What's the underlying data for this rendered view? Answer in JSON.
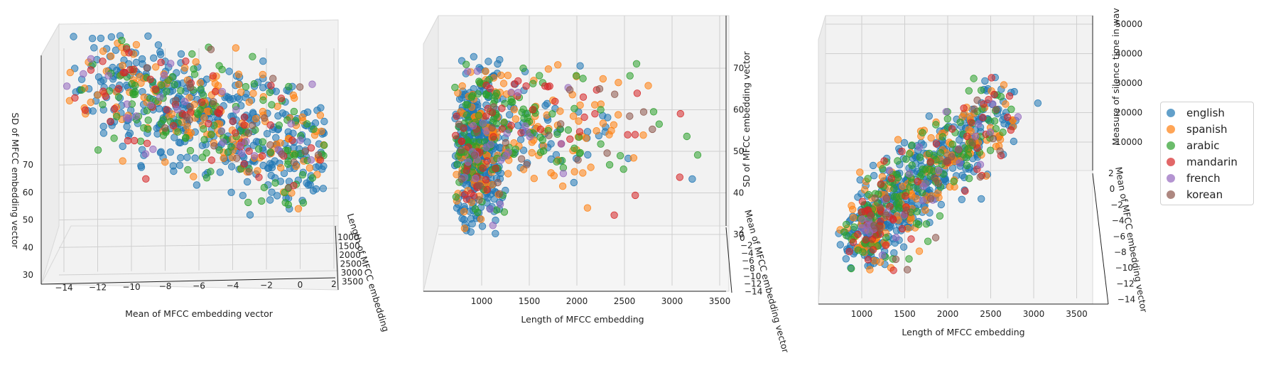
{
  "chart_data": [
    {
      "type": "scatter",
      "projection": "3d",
      "xlabel": "Mean of MFCC embedding vector",
      "ylabel": "Length of MFCC embedding",
      "zlabel": "SD of MFCC embedding vector",
      "x_ticks": [
        "−14",
        "−12",
        "−10",
        "−8",
        "−6",
        "−4",
        "−2",
        "0",
        "2"
      ],
      "y_ticks": [
        "1000",
        "1500",
        "2000",
        "2500",
        "3000",
        "3500"
      ],
      "z_ticks": [
        "30",
        "40",
        "50",
        "60",
        "70"
      ],
      "xlim": [
        -15,
        3
      ],
      "ylim": [
        500,
        3800
      ],
      "zlim": [
        27,
        78
      ],
      "grid": true
    },
    {
      "type": "scatter",
      "projection": "3d",
      "xlabel": "Length of MFCC embedding",
      "ylabel": "Mean of MFCC embedding vector",
      "zlabel": "SD of MFCC embedding vector",
      "x_ticks": [
        "1000",
        "1500",
        "2000",
        "2500",
        "3000",
        "3500"
      ],
      "y_ticks": [
        "2",
        "0",
        "−2",
        "−4",
        "−6",
        "−8",
        "−10",
        "−12",
        "−14"
      ],
      "z_ticks": [
        "30",
        "40",
        "50",
        "60",
        "70"
      ],
      "xlim": [
        500,
        3800
      ],
      "ylim": [
        -15,
        3
      ],
      "zlim": [
        27,
        78
      ],
      "grid": true
    },
    {
      "type": "scatter",
      "projection": "3d",
      "xlabel": "Length of MFCC embedding",
      "ylabel": "Mean of MFCC embedding vector",
      "zlabel": "Measure of silence time in wav",
      "x_ticks": [
        "1000",
        "1500",
        "2000",
        "2500",
        "3000",
        "3500"
      ],
      "y_ticks": [
        "2",
        "0",
        "−2",
        "−4",
        "−6",
        "−8",
        "−10",
        "−12",
        "−14"
      ],
      "z_ticks": [
        "10000",
        "20000",
        "30000",
        "40000",
        "50000"
      ],
      "xlim": [
        500,
        3800
      ],
      "ylim": [
        -15,
        3
      ],
      "zlim": [
        0,
        50000
      ],
      "grid": true
    }
  ],
  "legend": {
    "placement": "right",
    "series": [
      {
        "name": "english",
        "color": "#1f77b4"
      },
      {
        "name": "spanish",
        "color": "#ff7f0e"
      },
      {
        "name": "arabic",
        "color": "#2ca02c"
      },
      {
        "name": "mandarin",
        "color": "#d62728"
      },
      {
        "name": "french",
        "color": "#9467bd"
      },
      {
        "name": "korean",
        "color": "#8c564b"
      }
    ]
  },
  "approximate_series_counts": {
    "english": 420,
    "spanish": 160,
    "arabic": 150,
    "mandarin": 60,
    "french": 30,
    "korean": 25
  }
}
